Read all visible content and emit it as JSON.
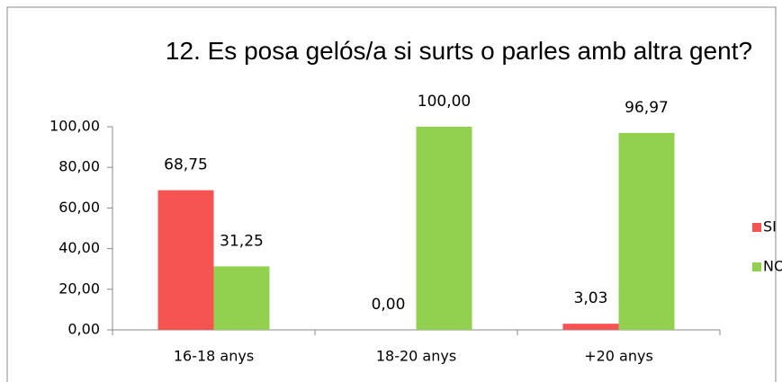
{
  "chart_data": {
    "type": "bar",
    "title": "12. Es posa gelós/a si surts o parles amb altra gent?",
    "categories": [
      "16-18 anys",
      "18-20 anys",
      "+20 anys"
    ],
    "series": [
      {
        "name": "SI",
        "color": "#f65353",
        "values": [
          68.75,
          0,
          3.03
        ],
        "value_labels": [
          "68,75",
          "0,00",
          "3,03"
        ]
      },
      {
        "name": "NO",
        "color": "#92d050",
        "values": [
          31.25,
          100,
          96.97
        ],
        "value_labels": [
          "31,25",
          "100,00",
          "96,97"
        ]
      }
    ],
    "ylim": [
      0,
      100
    ],
    "yticks": [
      {
        "value": 0,
        "label": "0,00"
      },
      {
        "value": 20,
        "label": "20,00"
      },
      {
        "value": 40,
        "label": "40,00"
      },
      {
        "value": 60,
        "label": "60,00"
      },
      {
        "value": 80,
        "label": "80,00"
      },
      {
        "value": 100,
        "label": "100,00"
      }
    ],
    "legend": "right",
    "grid": false
  }
}
